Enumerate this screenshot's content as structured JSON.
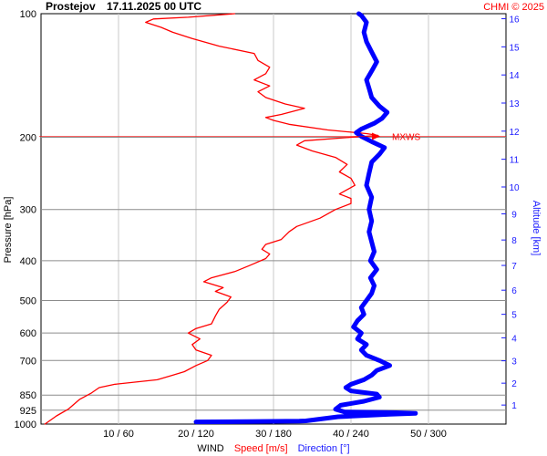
{
  "header": {
    "station": "Prostejov",
    "datetime": "17.11.2025 00 UTC",
    "copyright": "CHMI © 2025"
  },
  "chart_data": {
    "type": "line",
    "title": "Prostejov 17.11.2025 00 UTC",
    "xlabel_parts": [
      "WIND",
      "Speed [m/s]",
      "Direction [°]"
    ],
    "ylabel": "Pressure [hPa]",
    "y2label": "Altitude [km]",
    "x_ticks": [
      "10 / 60",
      "20 / 120",
      "30 / 180",
      "40 / 240",
      "50 / 300"
    ],
    "x_tick_values": [
      10,
      20,
      30,
      40,
      50
    ],
    "speed_range": [
      0,
      60
    ],
    "direction_range": [
      0,
      360
    ],
    "pressure_ticks": [
      100,
      200,
      300,
      400,
      500,
      600,
      700,
      850,
      925,
      1000
    ],
    "pressure_range": [
      100,
      1000
    ],
    "y_scale": "log",
    "altitude_ticks_km": [
      1,
      2,
      3,
      4,
      5,
      6,
      7,
      8,
      9,
      10,
      11,
      12,
      13,
      14,
      15,
      16
    ],
    "annotation": {
      "label": "MXWS",
      "pressure": 199
    },
    "grid": true,
    "series": [
      {
        "name": "Speed [m/s]",
        "color": "#ff0000",
        "unit": "m/s",
        "points": [
          [
            0.5,
            1000
          ],
          [
            2.0,
            955
          ],
          [
            3.5,
            920
          ],
          [
            5.0,
            870
          ],
          [
            6.5,
            840
          ],
          [
            7.5,
            815
          ],
          [
            9.5,
            800
          ],
          [
            15.0,
            780
          ],
          [
            17.0,
            760
          ],
          [
            18.5,
            745
          ],
          [
            20.0,
            720
          ],
          [
            21.5,
            700
          ],
          [
            22.0,
            680
          ],
          [
            20.0,
            660
          ],
          [
            19.5,
            640
          ],
          [
            20.5,
            620
          ],
          [
            19.0,
            600
          ],
          [
            20.0,
            585
          ],
          [
            22.0,
            570
          ],
          [
            22.5,
            545
          ],
          [
            23.0,
            525
          ],
          [
            24.0,
            505
          ],
          [
            24.5,
            490
          ],
          [
            22.5,
            475
          ],
          [
            23.5,
            465
          ],
          [
            21.0,
            450
          ],
          [
            22.0,
            440
          ],
          [
            25.0,
            425
          ],
          [
            27.0,
            410
          ],
          [
            29.0,
            395
          ],
          [
            29.5,
            385
          ],
          [
            28.5,
            375
          ],
          [
            29.0,
            365
          ],
          [
            31.0,
            355
          ],
          [
            32.0,
            340
          ],
          [
            33.0,
            330
          ],
          [
            36.0,
            315
          ],
          [
            38.0,
            300
          ],
          [
            40.0,
            290
          ],
          [
            40.0,
            282
          ],
          [
            38.5,
            275
          ],
          [
            40.5,
            262
          ],
          [
            40.0,
            252
          ],
          [
            38.5,
            243
          ],
          [
            39.5,
            233
          ],
          [
            38.0,
            224
          ],
          [
            35.0,
            216
          ],
          [
            33.0,
            209
          ],
          [
            34.0,
            204
          ],
          [
            40.0,
            200
          ],
          [
            43.5,
            198
          ],
          [
            42.0,
            196
          ],
          [
            37.0,
            192
          ],
          [
            32.0,
            186
          ],
          [
            30.0,
            182
          ],
          [
            29.0,
            179
          ],
          [
            31.0,
            176
          ],
          [
            32.5,
            173
          ],
          [
            34.0,
            170
          ],
          [
            31.5,
            166
          ],
          [
            29.0,
            160
          ],
          [
            28.0,
            155
          ],
          [
            29.5,
            150
          ],
          [
            27.5,
            145
          ],
          [
            29.0,
            140
          ],
          [
            29.5,
            135
          ],
          [
            28.0,
            130
          ],
          [
            27.5,
            125
          ],
          [
            23.0,
            120
          ],
          [
            19.5,
            115
          ],
          [
            17.0,
            111
          ],
          [
            15.5,
            108
          ],
          [
            13.5,
            105
          ],
          [
            14.5,
            103
          ],
          [
            19.0,
            102
          ],
          [
            25.0,
            100
          ]
        ]
      },
      {
        "name": "Direction [°]",
        "color": "#0000ff",
        "unit": "deg",
        "points": [
          [
            120,
            988
          ],
          [
            160,
            986
          ],
          [
            200,
            984
          ],
          [
            205,
            982
          ],
          [
            230,
            960
          ],
          [
            270,
            946
          ],
          [
            290,
            942
          ],
          [
            275,
            938
          ],
          [
            235,
            934
          ],
          [
            228,
            920
          ],
          [
            232,
            900
          ],
          [
            250,
            880
          ],
          [
            262,
            860
          ],
          [
            260,
            845
          ],
          [
            240,
            830
          ],
          [
            236,
            815
          ],
          [
            240,
            800
          ],
          [
            250,
            780
          ],
          [
            256,
            760
          ],
          [
            260,
            740
          ],
          [
            270,
            720
          ],
          [
            262,
            700
          ],
          [
            252,
            680
          ],
          [
            248,
            660
          ],
          [
            252,
            640
          ],
          [
            245,
            620
          ],
          [
            248,
            600
          ],
          [
            242,
            580
          ],
          [
            245,
            560
          ],
          [
            250,
            540
          ],
          [
            248,
            520
          ],
          [
            252,
            500
          ],
          [
            256,
            480
          ],
          [
            258,
            460
          ],
          [
            255,
            440
          ],
          [
            260,
            420
          ],
          [
            255,
            400
          ],
          [
            258,
            380
          ],
          [
            256,
            360
          ],
          [
            254,
            340
          ],
          [
            256,
            320
          ],
          [
            254,
            300
          ],
          [
            256,
            280
          ],
          [
            252,
            262
          ],
          [
            254,
            245
          ],
          [
            256,
            230
          ],
          [
            262,
            220
          ],
          [
            266,
            212
          ],
          [
            256,
            205
          ],
          [
            248,
            199
          ],
          [
            244,
            195
          ],
          [
            248,
            191
          ],
          [
            258,
            185
          ],
          [
            264,
            180
          ],
          [
            268,
            174
          ],
          [
            262,
            168
          ],
          [
            256,
            160
          ],
          [
            254,
            152
          ],
          [
            252,
            145
          ],
          [
            256,
            138
          ],
          [
            260,
            131
          ],
          [
            256,
            124
          ],
          [
            252,
            117
          ],
          [
            250,
            111
          ],
          [
            252,
            105
          ],
          [
            248,
            101
          ],
          [
            246,
            100
          ]
        ]
      }
    ]
  }
}
